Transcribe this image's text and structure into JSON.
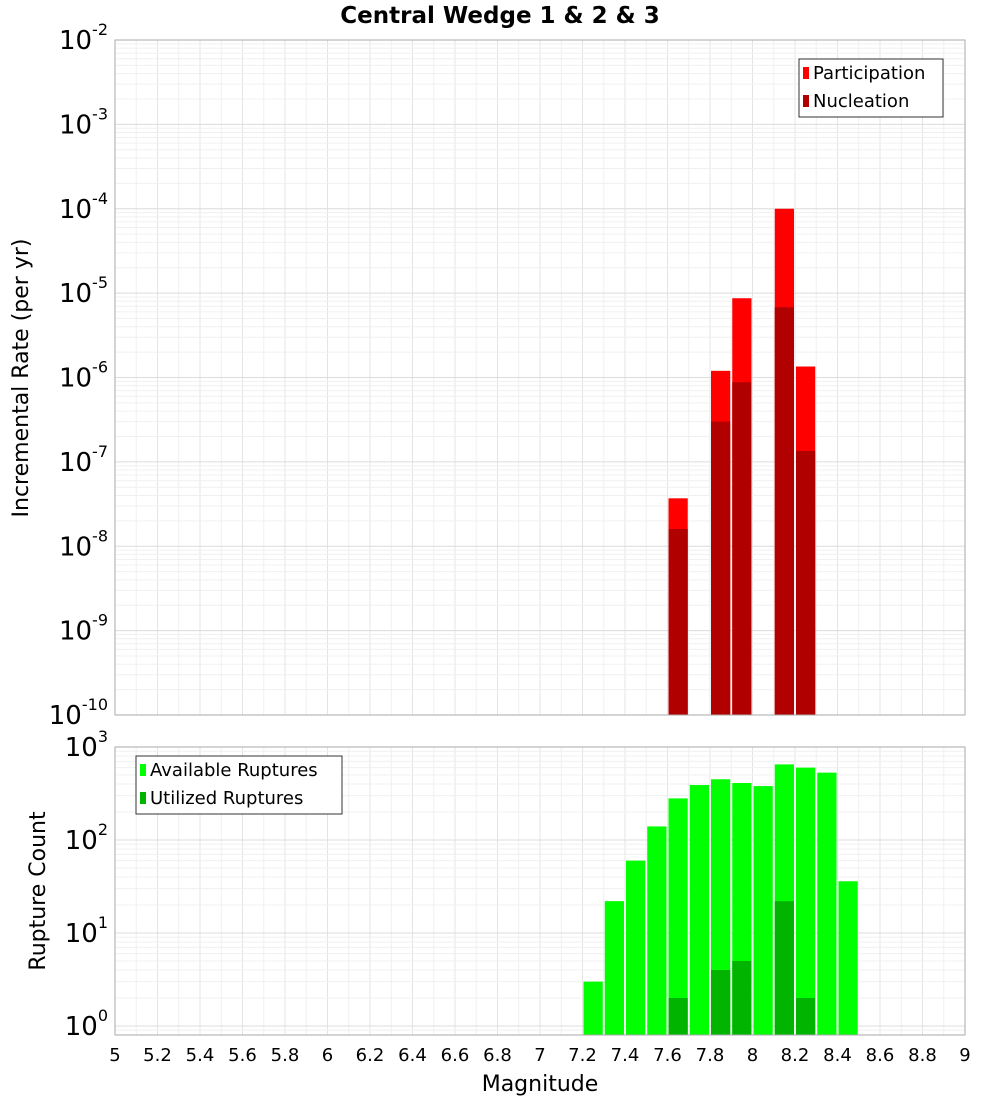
{
  "chart_data": [
    {
      "type": "bar",
      "title": "Central Wedge 1 & 2 & 3",
      "xlabel": "Magnitude",
      "ylabel": "Incremental Rate (per yr)",
      "yscale": "log",
      "ylim": [
        1e-10,
        0.01
      ],
      "xlim": [
        5,
        9
      ],
      "grid": true,
      "legend_position": "top-right",
      "series": [
        {
          "name": "Participation",
          "color": "#ff0000",
          "x": [
            7.65,
            7.85,
            7.95,
            8.15,
            8.25
          ],
          "values": [
            3.7e-08,
            1.2e-06,
            8.7e-06,
            0.0001,
            1.35e-06
          ]
        },
        {
          "name": "Nucleation",
          "color": "#b00000",
          "x": [
            7.65,
            7.85,
            7.95,
            8.15,
            8.25
          ],
          "values": [
            1.6e-08,
            3e-07,
            8.8e-07,
            6.8e-06,
            1.35e-07
          ]
        }
      ]
    },
    {
      "type": "bar",
      "xlabel": "Magnitude",
      "ylabel": "Rupture Count",
      "yscale": "log",
      "ylim": [
        0.8,
        1000
      ],
      "xlim": [
        5,
        9
      ],
      "grid": true,
      "legend_position": "top-left",
      "series": [
        {
          "name": "Available Ruptures",
          "color": "#00ff00",
          "x": [
            7.25,
            7.35,
            7.45,
            7.55,
            7.65,
            7.75,
            7.85,
            7.95,
            8.05,
            8.15,
            8.25,
            8.35,
            8.45
          ],
          "values": [
            3,
            22,
            60,
            140,
            280,
            390,
            450,
            410,
            380,
            650,
            600,
            530,
            36
          ]
        },
        {
          "name": "Utilized Ruptures",
          "color": "#00b400",
          "x": [
            7.65,
            7.85,
            7.95,
            8.15,
            8.25
          ],
          "values": [
            2,
            4,
            5,
            22,
            2
          ]
        }
      ]
    }
  ],
  "x_ticks": [
    "5",
    "5.2",
    "5.4",
    "5.6",
    "5.8",
    "6",
    "6.2",
    "6.4",
    "6.6",
    "6.8",
    "7",
    "7.2",
    "7.4",
    "7.6",
    "7.8",
    "8",
    "8.2",
    "8.4",
    "8.6",
    "8.8",
    "9"
  ],
  "top_ticks": [
    {
      "base": "10",
      "exp": "-10"
    },
    {
      "base": "10",
      "exp": "-9"
    },
    {
      "base": "10",
      "exp": "-8"
    },
    {
      "base": "10",
      "exp": "-7"
    },
    {
      "base": "10",
      "exp": "-6"
    },
    {
      "base": "10",
      "exp": "-5"
    },
    {
      "base": "10",
      "exp": "-4"
    },
    {
      "base": "10",
      "exp": "-3"
    },
    {
      "base": "10",
      "exp": "-2"
    }
  ],
  "bottom_ticks": [
    {
      "base": "10",
      "exp": "0"
    },
    {
      "base": "10",
      "exp": "1"
    },
    {
      "base": "10",
      "exp": "2"
    },
    {
      "base": "10",
      "exp": "3"
    }
  ]
}
